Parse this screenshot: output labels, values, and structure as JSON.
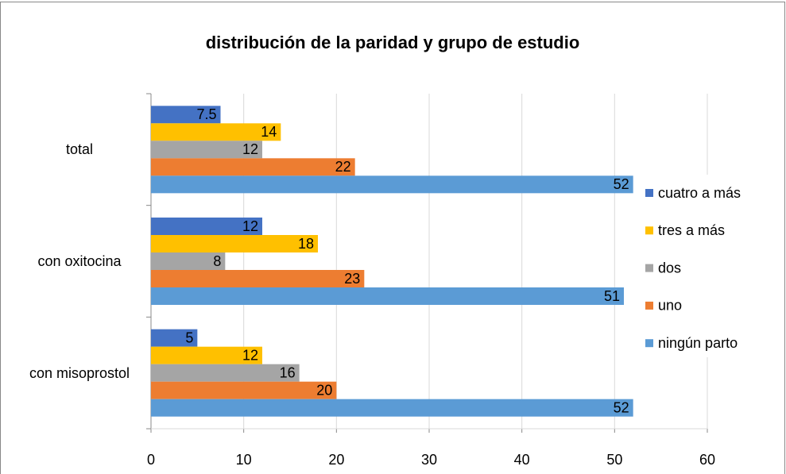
{
  "chart_data": {
    "type": "barh",
    "title": "distribución de la paridad y grupo de estudio",
    "categories": [
      "con misoprostol",
      "con oxitocina",
      "total"
    ],
    "series": [
      {
        "name": "cuatro a más",
        "color": "#4472c4",
        "values": [
          5,
          12,
          7.5
        ]
      },
      {
        "name": "tres a más",
        "color": "#ffc000",
        "values": [
          12,
          18,
          14
        ]
      },
      {
        "name": "dos",
        "color": "#a5a5a5",
        "values": [
          16,
          8,
          12
        ]
      },
      {
        "name": "uno",
        "color": "#ed7d31",
        "values": [
          20,
          23,
          22
        ]
      },
      {
        "name": "ningún parto",
        "color": "#5b9bd5",
        "values": [
          52,
          51,
          52
        ]
      }
    ],
    "xlim": [
      0,
      60
    ],
    "xticks": [
      0,
      10,
      20,
      30,
      40,
      50,
      60
    ],
    "grid": true,
    "legend": "right"
  }
}
